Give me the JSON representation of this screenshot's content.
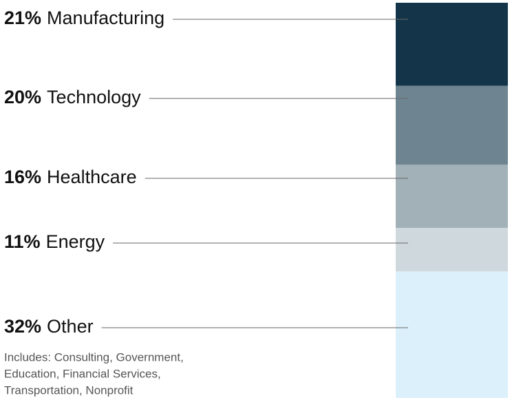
{
  "chart_data": {
    "type": "stacked-bar",
    "categories": [
      "Manufacturing",
      "Technology",
      "Healthcare",
      "Energy",
      "Other"
    ],
    "values": [
      21,
      20,
      16,
      11,
      32
    ],
    "value_labels": [
      "21%",
      "20%",
      "16%",
      "11%",
      "32%"
    ],
    "colors": [
      "#143549",
      "#6e8591",
      "#a2b0b8",
      "#cfd8dc",
      "#dcf0fb"
    ],
    "ylim": [
      0,
      100
    ],
    "note": [
      "Includes: Consulting, Government,",
      "Education, Financial Services,",
      "Transportation, Nonprofit"
    ]
  }
}
